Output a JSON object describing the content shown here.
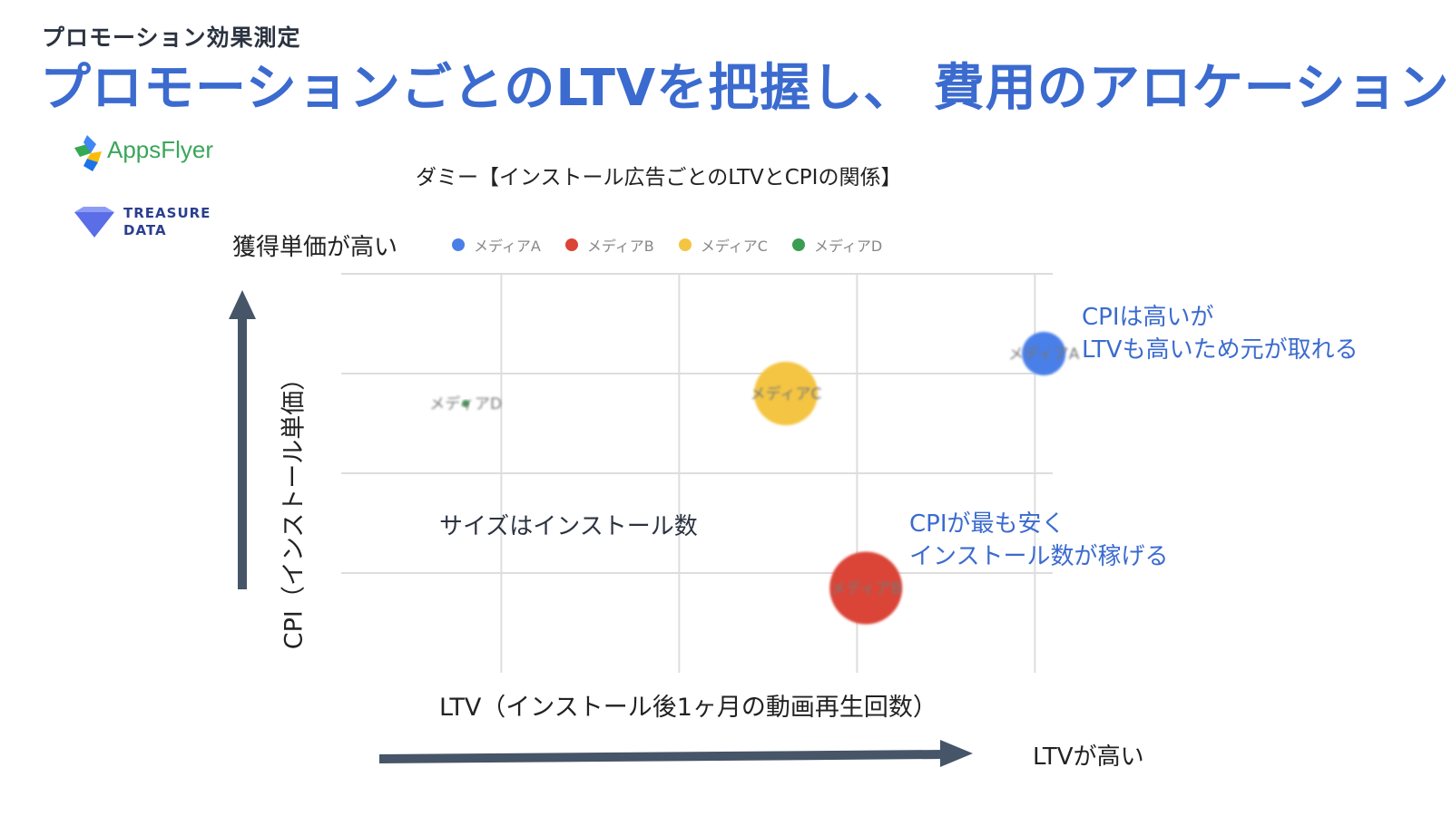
{
  "header": {
    "subtitle": "プロモーション効果測定",
    "title": "プロモーションごとのLTVを把握し、 費用のアロケーション"
  },
  "logos": {
    "appsflyer": "AppsFlyer",
    "treasure_line1": "TREASURE",
    "treasure_line2": "DATA"
  },
  "labels": {
    "cpi_high": "獲得単価が高い",
    "ltv_high": "LTVが高い",
    "size_note": "サイズはインストール数",
    "annot_a_line1": "CPIは高いが",
    "annot_a_line2": "LTVも高いため元が取れる",
    "annot_b_line1": "CPIが最も安く",
    "annot_b_line2": "インストール数が稼げる"
  },
  "colors": {
    "title_blue": "#3b6bcf",
    "arrow": "#465568",
    "media_a": "#4a7fe8",
    "media_b": "#db4437",
    "media_c": "#f4c542",
    "media_d": "#3a9d4f"
  },
  "chart_data": {
    "type": "scatter",
    "title": "ダミー【インストール広告ごとのLTVとCPIの関係】",
    "xlabel": "LTV（インストール後1ヶ月の動画再生回数）",
    "ylabel": "CPI（インストール単価）",
    "xlim": [
      0,
      4
    ],
    "ylim": [
      0,
      4
    ],
    "grid": true,
    "legend_position": "top",
    "series": [
      {
        "name": "メディアA",
        "color": "#4a7fe8",
        "x": 3.95,
        "y": 3.2,
        "size": 24
      },
      {
        "name": "メディアB",
        "color": "#db4437",
        "x": 2.95,
        "y": 0.85,
        "size": 40
      },
      {
        "name": "メディアC",
        "color": "#f4c542",
        "x": 2.5,
        "y": 2.8,
        "size": 35
      },
      {
        "name": "メディアD",
        "color": "#3a9d4f",
        "x": 0.7,
        "y": 2.7,
        "size": 4
      }
    ]
  }
}
